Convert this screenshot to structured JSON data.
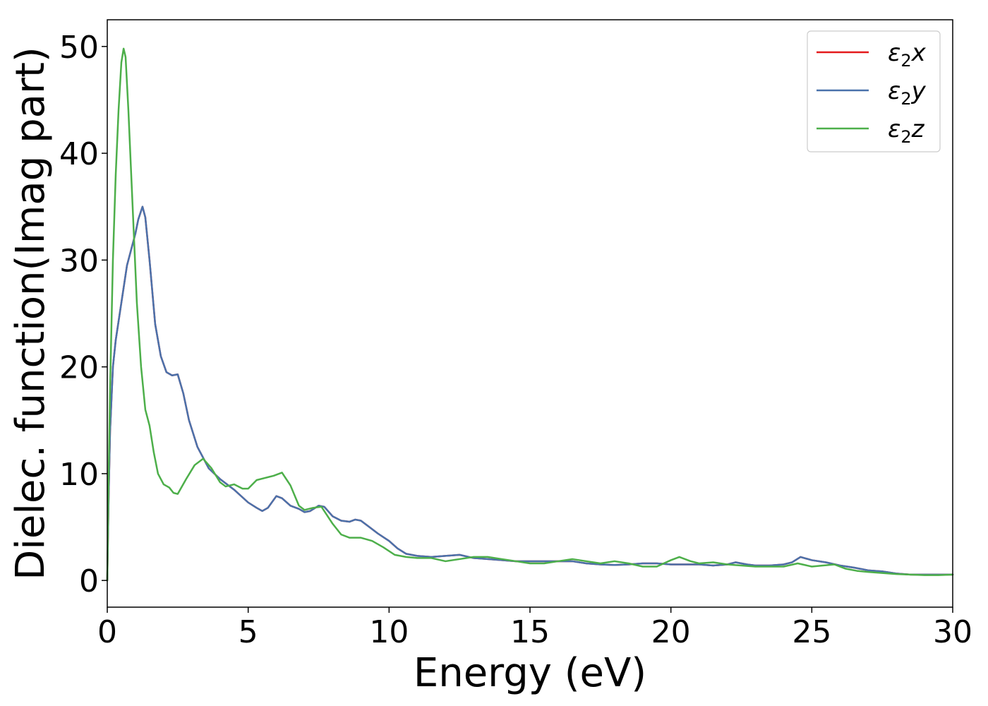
{
  "chart_data": {
    "type": "line",
    "title": "",
    "xlabel": "Energy (eV)",
    "ylabel": "Dielec. function(Imag part)",
    "xlim": [
      0,
      30
    ],
    "ylim": [
      -2.5,
      52.5
    ],
    "xticks": [
      0,
      5,
      10,
      15,
      20,
      25,
      30
    ],
    "yticks": [
      0,
      10,
      20,
      30,
      40,
      50
    ],
    "grid": false,
    "legend_position": "top-right",
    "series": [
      {
        "name": "ε2x",
        "legend_base": "ε",
        "legend_sub": "2",
        "legend_suffix": "x",
        "color": "#e41a1c",
        "points": [
          [
            0,
            0
          ],
          [
            0.05,
            8
          ],
          [
            0.1,
            14
          ],
          [
            0.2,
            20
          ],
          [
            0.3,
            22.5
          ],
          [
            0.5,
            26
          ],
          [
            0.7,
            29.5
          ],
          [
            0.9,
            31.5
          ],
          [
            1.0,
            32.5
          ],
          [
            1.1,
            33.8
          ],
          [
            1.25,
            35
          ],
          [
            1.35,
            34
          ],
          [
            1.5,
            30
          ],
          [
            1.7,
            24
          ],
          [
            1.9,
            21
          ],
          [
            2.1,
            19.5
          ],
          [
            2.3,
            19.2
          ],
          [
            2.5,
            19.3
          ],
          [
            2.7,
            17.5
          ],
          [
            2.9,
            15
          ],
          [
            3.2,
            12.5
          ],
          [
            3.6,
            10.5
          ],
          [
            4.0,
            9.5
          ],
          [
            4.5,
            8.5
          ],
          [
            5.0,
            7.3
          ],
          [
            5.3,
            6.8
          ],
          [
            5.5,
            6.5
          ],
          [
            5.7,
            6.8
          ],
          [
            6.0,
            7.9
          ],
          [
            6.2,
            7.7
          ],
          [
            6.5,
            7.0
          ],
          [
            6.8,
            6.7
          ],
          [
            7.0,
            6.4
          ],
          [
            7.2,
            6.5
          ],
          [
            7.5,
            7.0
          ],
          [
            7.7,
            6.9
          ],
          [
            8.0,
            6.0
          ],
          [
            8.3,
            5.6
          ],
          [
            8.6,
            5.5
          ],
          [
            8.8,
            5.7
          ],
          [
            9.0,
            5.6
          ],
          [
            9.3,
            5.0
          ],
          [
            9.6,
            4.4
          ],
          [
            10.0,
            3.7
          ],
          [
            10.3,
            3.0
          ],
          [
            10.6,
            2.5
          ],
          [
            11.0,
            2.3
          ],
          [
            11.5,
            2.2
          ],
          [
            12.0,
            2.3
          ],
          [
            12.5,
            2.4
          ],
          [
            13.0,
            2.1
          ],
          [
            13.5,
            2.0
          ],
          [
            14.0,
            1.9
          ],
          [
            14.5,
            1.8
          ],
          [
            15.0,
            1.8
          ],
          [
            15.5,
            1.8
          ],
          [
            16.0,
            1.8
          ],
          [
            16.5,
            1.8
          ],
          [
            17.0,
            1.6
          ],
          [
            17.5,
            1.5
          ],
          [
            18.0,
            1.45
          ],
          [
            18.5,
            1.5
          ],
          [
            19.0,
            1.6
          ],
          [
            19.5,
            1.6
          ],
          [
            20.0,
            1.5
          ],
          [
            20.5,
            1.5
          ],
          [
            21.0,
            1.5
          ],
          [
            21.5,
            1.4
          ],
          [
            22.0,
            1.5
          ],
          [
            22.3,
            1.7
          ],
          [
            22.7,
            1.5
          ],
          [
            23.0,
            1.4
          ],
          [
            23.5,
            1.4
          ],
          [
            24.0,
            1.5
          ],
          [
            24.3,
            1.7
          ],
          [
            24.6,
            2.2
          ],
          [
            25.0,
            1.9
          ],
          [
            25.5,
            1.7
          ],
          [
            26.0,
            1.4
          ],
          [
            26.5,
            1.2
          ],
          [
            27.0,
            0.95
          ],
          [
            27.5,
            0.85
          ],
          [
            28.0,
            0.65
          ],
          [
            28.5,
            0.55
          ],
          [
            29.0,
            0.55
          ],
          [
            29.5,
            0.55
          ],
          [
            30.0,
            0.55
          ]
        ]
      },
      {
        "name": "ε2y",
        "legend_base": "ε",
        "legend_sub": "2",
        "legend_suffix": "y",
        "color": "#4a72ab",
        "points": [
          [
            0,
            0
          ],
          [
            0.05,
            8
          ],
          [
            0.1,
            14
          ],
          [
            0.2,
            20
          ],
          [
            0.3,
            22.5
          ],
          [
            0.5,
            26
          ],
          [
            0.7,
            29.5
          ],
          [
            0.9,
            31.5
          ],
          [
            1.0,
            32.5
          ],
          [
            1.1,
            33.8
          ],
          [
            1.25,
            35
          ],
          [
            1.35,
            34
          ],
          [
            1.5,
            30
          ],
          [
            1.7,
            24
          ],
          [
            1.9,
            21
          ],
          [
            2.1,
            19.5
          ],
          [
            2.3,
            19.2
          ],
          [
            2.5,
            19.3
          ],
          [
            2.7,
            17.5
          ],
          [
            2.9,
            15
          ],
          [
            3.2,
            12.5
          ],
          [
            3.6,
            10.5
          ],
          [
            4.0,
            9.5
          ],
          [
            4.5,
            8.5
          ],
          [
            5.0,
            7.3
          ],
          [
            5.3,
            6.8
          ],
          [
            5.5,
            6.5
          ],
          [
            5.7,
            6.8
          ],
          [
            6.0,
            7.9
          ],
          [
            6.2,
            7.7
          ],
          [
            6.5,
            7.0
          ],
          [
            6.8,
            6.7
          ],
          [
            7.0,
            6.4
          ],
          [
            7.2,
            6.5
          ],
          [
            7.5,
            7.0
          ],
          [
            7.7,
            6.9
          ],
          [
            8.0,
            6.0
          ],
          [
            8.3,
            5.6
          ],
          [
            8.6,
            5.5
          ],
          [
            8.8,
            5.7
          ],
          [
            9.0,
            5.6
          ],
          [
            9.3,
            5.0
          ],
          [
            9.6,
            4.4
          ],
          [
            10.0,
            3.7
          ],
          [
            10.3,
            3.0
          ],
          [
            10.6,
            2.5
          ],
          [
            11.0,
            2.3
          ],
          [
            11.5,
            2.2
          ],
          [
            12.0,
            2.3
          ],
          [
            12.5,
            2.4
          ],
          [
            13.0,
            2.1
          ],
          [
            13.5,
            2.0
          ],
          [
            14.0,
            1.9
          ],
          [
            14.5,
            1.8
          ],
          [
            15.0,
            1.8
          ],
          [
            15.5,
            1.8
          ],
          [
            16.0,
            1.8
          ],
          [
            16.5,
            1.8
          ],
          [
            17.0,
            1.6
          ],
          [
            17.5,
            1.5
          ],
          [
            18.0,
            1.45
          ],
          [
            18.5,
            1.5
          ],
          [
            19.0,
            1.6
          ],
          [
            19.5,
            1.6
          ],
          [
            20.0,
            1.5
          ],
          [
            20.5,
            1.5
          ],
          [
            21.0,
            1.5
          ],
          [
            21.5,
            1.4
          ],
          [
            22.0,
            1.5
          ],
          [
            22.3,
            1.7
          ],
          [
            22.7,
            1.5
          ],
          [
            23.0,
            1.4
          ],
          [
            23.5,
            1.4
          ],
          [
            24.0,
            1.5
          ],
          [
            24.3,
            1.7
          ],
          [
            24.6,
            2.2
          ],
          [
            25.0,
            1.9
          ],
          [
            25.5,
            1.7
          ],
          [
            26.0,
            1.4
          ],
          [
            26.5,
            1.2
          ],
          [
            27.0,
            0.95
          ],
          [
            27.5,
            0.85
          ],
          [
            28.0,
            0.65
          ],
          [
            28.5,
            0.55
          ],
          [
            29.0,
            0.55
          ],
          [
            29.5,
            0.55
          ],
          [
            30.0,
            0.55
          ]
        ]
      },
      {
        "name": "ε2z",
        "legend_base": "ε",
        "legend_sub": "2",
        "legend_suffix": "z",
        "color": "#4daf4a",
        "points": [
          [
            0,
            0
          ],
          [
            0.05,
            10
          ],
          [
            0.1,
            18
          ],
          [
            0.2,
            30
          ],
          [
            0.3,
            38
          ],
          [
            0.4,
            44
          ],
          [
            0.5,
            48.5
          ],
          [
            0.58,
            49.8
          ],
          [
            0.65,
            49
          ],
          [
            0.75,
            44
          ],
          [
            0.9,
            35
          ],
          [
            1.05,
            26
          ],
          [
            1.2,
            20
          ],
          [
            1.35,
            16
          ],
          [
            1.5,
            14.5
          ],
          [
            1.65,
            12
          ],
          [
            1.8,
            10
          ],
          [
            2.0,
            9.0
          ],
          [
            2.2,
            8.7
          ],
          [
            2.35,
            8.2
          ],
          [
            2.5,
            8.1
          ],
          [
            2.8,
            9.5
          ],
          [
            3.1,
            10.8
          ],
          [
            3.4,
            11.4
          ],
          [
            3.7,
            10.5
          ],
          [
            4.0,
            9.2
          ],
          [
            4.2,
            8.8
          ],
          [
            4.5,
            9.0
          ],
          [
            4.8,
            8.6
          ],
          [
            5.0,
            8.6
          ],
          [
            5.3,
            9.4
          ],
          [
            5.6,
            9.6
          ],
          [
            5.9,
            9.8
          ],
          [
            6.2,
            10.1
          ],
          [
            6.5,
            8.9
          ],
          [
            6.8,
            7.0
          ],
          [
            7.0,
            6.6
          ],
          [
            7.3,
            6.8
          ],
          [
            7.6,
            6.9
          ],
          [
            8.0,
            5.3
          ],
          [
            8.3,
            4.3
          ],
          [
            8.6,
            4.0
          ],
          [
            9.0,
            4.0
          ],
          [
            9.4,
            3.7
          ],
          [
            9.8,
            3.1
          ],
          [
            10.2,
            2.4
          ],
          [
            10.6,
            2.2
          ],
          [
            11.0,
            2.1
          ],
          [
            11.5,
            2.1
          ],
          [
            12.0,
            1.8
          ],
          [
            12.5,
            2.0
          ],
          [
            13.0,
            2.2
          ],
          [
            13.5,
            2.2
          ],
          [
            14.0,
            2.0
          ],
          [
            14.5,
            1.8
          ],
          [
            15.0,
            1.6
          ],
          [
            15.5,
            1.6
          ],
          [
            16.0,
            1.8
          ],
          [
            16.5,
            2.0
          ],
          [
            17.0,
            1.8
          ],
          [
            17.5,
            1.6
          ],
          [
            18.0,
            1.8
          ],
          [
            18.5,
            1.6
          ],
          [
            19.0,
            1.3
          ],
          [
            19.5,
            1.3
          ],
          [
            20.0,
            1.9
          ],
          [
            20.3,
            2.2
          ],
          [
            20.7,
            1.8
          ],
          [
            21.0,
            1.6
          ],
          [
            21.5,
            1.7
          ],
          [
            22.0,
            1.5
          ],
          [
            22.5,
            1.4
          ],
          [
            23.0,
            1.3
          ],
          [
            23.5,
            1.3
          ],
          [
            24.0,
            1.3
          ],
          [
            24.5,
            1.6
          ],
          [
            25.0,
            1.3
          ],
          [
            25.4,
            1.4
          ],
          [
            25.8,
            1.5
          ],
          [
            26.2,
            1.1
          ],
          [
            26.6,
            0.9
          ],
          [
            27.0,
            0.8
          ],
          [
            27.5,
            0.7
          ],
          [
            28.0,
            0.6
          ],
          [
            28.5,
            0.55
          ],
          [
            29.0,
            0.5
          ],
          [
            29.5,
            0.5
          ],
          [
            30.0,
            0.55
          ]
        ]
      }
    ]
  }
}
